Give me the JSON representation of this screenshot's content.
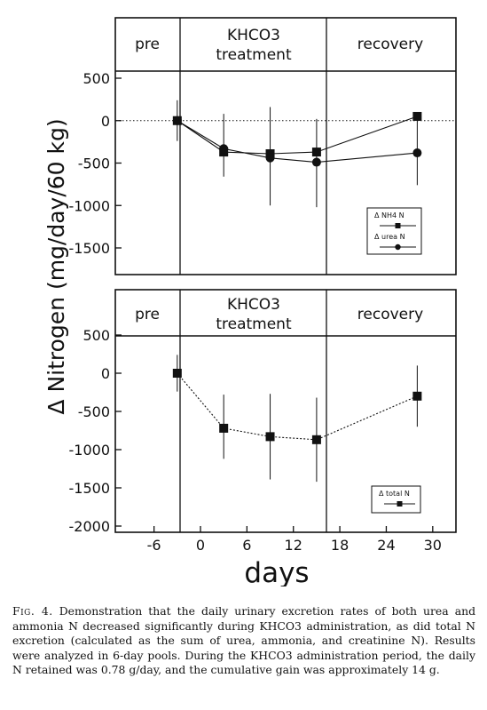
{
  "figure": {
    "ylabel": "Δ Nitrogen (mg/day/60 kg)",
    "xlabel": "days",
    "xticks": [
      -6,
      0,
      6,
      12,
      18,
      24,
      30
    ],
    "period_labels": {
      "pre": "pre",
      "treatment_line1": "KHCO3",
      "treatment_line2": "treatment",
      "recovery": "recovery"
    }
  },
  "chart_data": [
    {
      "type": "line",
      "panel": "top",
      "xlim": [
        -11,
        33
      ],
      "ylim": [
        -1800,
        550
      ],
      "yticks": [
        500,
        0,
        -500,
        -1000,
        -1500
      ],
      "zero_line": "dotted",
      "legend_position": "bottom-right",
      "series": [
        {
          "name": "Δ NH4 N",
          "marker": "square",
          "points": [
            {
              "x": -3,
              "y": 0
            },
            {
              "x": 3,
              "y": -370
            },
            {
              "x": 9,
              "y": -390
            },
            {
              "x": 15,
              "y": -370
            },
            {
              "x": 28,
              "y": 50
            }
          ]
        },
        {
          "name": "Δ urea N",
          "marker": "circle",
          "points": [
            {
              "x": -3,
              "y": 0
            },
            {
              "x": 3,
              "y": -330
            },
            {
              "x": 9,
              "y": -440
            },
            {
              "x": 15,
              "y": -490
            },
            {
              "x": 28,
              "y": -380
            }
          ]
        }
      ],
      "error_bars": [
        {
          "x": -3,
          "low": -240,
          "high": 240
        },
        {
          "x": 3,
          "low": -660,
          "high": 80
        },
        {
          "x": 9,
          "low": -1000,
          "high": 160
        },
        {
          "x": 15,
          "low": -1020,
          "high": 20
        },
        {
          "x": 28,
          "low": -760,
          "high": 0
        }
      ]
    },
    {
      "type": "line",
      "panel": "bottom",
      "xlim": [
        -11,
        33
      ],
      "ylim": [
        -2100,
        550
      ],
      "yticks": [
        500,
        0,
        -500,
        -1000,
        -1500,
        -2000
      ],
      "legend_position": "bottom-right",
      "series": [
        {
          "name": "Δ total N",
          "marker": "square",
          "line_style": "dotted",
          "points": [
            {
              "x": -3,
              "y": 0
            },
            {
              "x": 3,
              "y": -720
            },
            {
              "x": 9,
              "y": -830
            },
            {
              "x": 15,
              "y": -870
            },
            {
              "x": 28,
              "y": -300
            }
          ]
        }
      ],
      "error_bars": [
        {
          "x": -3,
          "low": -240,
          "high": 240
        },
        {
          "x": 3,
          "low": -1120,
          "high": -280
        },
        {
          "x": 9,
          "low": -1390,
          "high": -270
        },
        {
          "x": 15,
          "low": -1420,
          "high": -320
        },
        {
          "x": 28,
          "low": -700,
          "high": 100
        }
      ]
    }
  ],
  "caption": {
    "label": "Fig. 4.",
    "text": "Demonstration that the daily urinary excretion rates of both urea and ammonia N decreased significantly during KHCO3 administration, as did total N excretion (calculated as the sum of urea, ammonia, and creatinine N). Results were analyzed in 6-day pools. During the KHCO3 administration period, the daily N retained was 0.78 g/day, and the cumulative gain was approximately 14 g."
  },
  "colors": {
    "ink": "#111111",
    "background": "#ffffff"
  }
}
